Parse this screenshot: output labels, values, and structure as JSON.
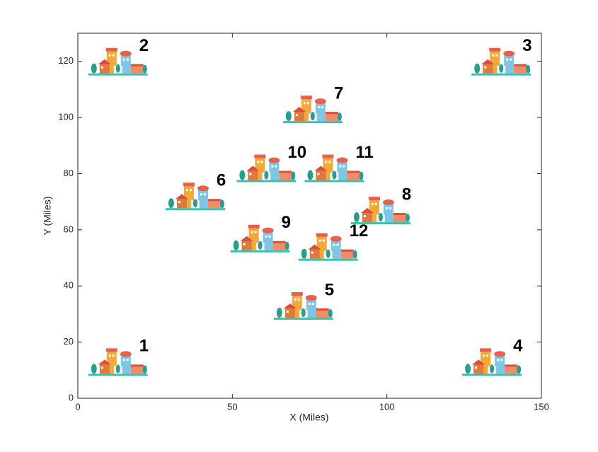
{
  "chart_data": {
    "type": "scatter",
    "xlabel": "X (Miles)",
    "ylabel": "Y (Miles)",
    "labels": [
      "1",
      "2",
      "3",
      "4",
      "5",
      "6",
      "7",
      "8",
      "9",
      "10",
      "11",
      "12"
    ],
    "x": [
      13,
      13,
      137,
      134,
      73,
      38,
      76,
      98,
      59,
      61,
      83,
      81
    ],
    "values": [
      13,
      120,
      120,
      13,
      33,
      72,
      103,
      67,
      57,
      82,
      82,
      54
    ],
    "xlim": [
      0,
      150
    ],
    "xticks": [
      0,
      50,
      100,
      150
    ],
    "ylim": [
      0,
      130
    ],
    "yticks": [
      0,
      20,
      40,
      60,
      80,
      100,
      120
    ]
  }
}
